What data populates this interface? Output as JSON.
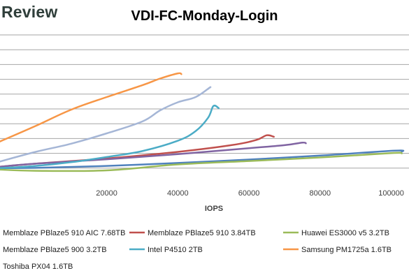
{
  "header": {
    "logo_text": "Review"
  },
  "chart_data": {
    "type": "line",
    "title": "VDI-FC-Monday-Login",
    "xlabel": "IOPS",
    "ylabel": "",
    "xlim": [
      -10000,
      105000
    ],
    "ylim": [
      0,
      10
    ],
    "x_ticks": [
      20000,
      40000,
      60000,
      80000,
      100000
    ],
    "x_tick_labels": [
      "20000",
      "40000",
      "60000",
      "80000",
      "100000"
    ],
    "grid": true,
    "legend_position": "bottom",
    "series": [
      {
        "name": "Memblaze PBlaze5 910 AIC 7.68TB",
        "color": "#4f81bd",
        "points": [
          [
            -10000,
            1.0
          ],
          [
            0,
            1.02
          ],
          [
            20000,
            1.15
          ],
          [
            40000,
            1.35
          ],
          [
            60000,
            1.58
          ],
          [
            80000,
            1.85
          ],
          [
            101000,
            2.18
          ],
          [
            103000,
            2.12
          ]
        ]
      },
      {
        "name": "Memblaze PBlaze5 910 3.84TB",
        "color": "#c0504d",
        "points": [
          [
            -10000,
            1.1
          ],
          [
            0,
            1.3
          ],
          [
            20000,
            1.65
          ],
          [
            40000,
            2.1
          ],
          [
            55000,
            2.55
          ],
          [
            62000,
            2.9
          ],
          [
            65000,
            3.22
          ],
          [
            67000,
            3.12
          ]
        ]
      },
      {
        "name": "Huawei ES3000 v5 3.2TB",
        "color": "#9bbb59",
        "points": [
          [
            -10000,
            0.9
          ],
          [
            0,
            0.82
          ],
          [
            20000,
            0.85
          ],
          [
            40000,
            1.25
          ],
          [
            60000,
            1.48
          ],
          [
            80000,
            1.72
          ],
          [
            100000,
            2.02
          ],
          [
            103000,
            2.0
          ]
        ]
      },
      {
        "name": "Memblaze PBlaze5 900 3.2TB",
        "color": "#8064a2",
        "points": [
          [
            -10000,
            1.1
          ],
          [
            0,
            1.3
          ],
          [
            20000,
            1.6
          ],
          [
            40000,
            1.95
          ],
          [
            60000,
            2.35
          ],
          [
            70000,
            2.55
          ],
          [
            75000,
            2.72
          ],
          [
            76000,
            2.68
          ]
        ]
      },
      {
        "name": "Intel P4510 2TB",
        "color": "#4bacc6",
        "points": [
          [
            -10000,
            1.0
          ],
          [
            0,
            1.15
          ],
          [
            10000,
            1.4
          ],
          [
            20000,
            1.75
          ],
          [
            30000,
            2.15
          ],
          [
            40000,
            2.85
          ],
          [
            45000,
            3.5
          ],
          [
            48500,
            4.4
          ],
          [
            50000,
            5.2
          ],
          [
            51500,
            5.05
          ]
        ]
      },
      {
        "name": "Samsung PM1725a 1.6TB",
        "color": "#f79646",
        "points": [
          [
            -10000,
            2.8
          ],
          [
            0,
            3.85
          ],
          [
            10000,
            4.95
          ],
          [
            20000,
            5.8
          ],
          [
            30000,
            6.6
          ],
          [
            35000,
            7.05
          ],
          [
            40000,
            7.4
          ],
          [
            41000,
            7.35
          ]
        ]
      },
      {
        "name": "Toshiba PX04 1.6TB",
        "color": "#a5b6d6",
        "points": [
          [
            -10000,
            1.45
          ],
          [
            0,
            2.1
          ],
          [
            10000,
            2.65
          ],
          [
            20000,
            3.35
          ],
          [
            30000,
            4.15
          ],
          [
            35000,
            4.9
          ],
          [
            40000,
            5.45
          ],
          [
            45000,
            5.8
          ],
          [
            49000,
            6.45
          ],
          [
            48500,
            6.35
          ]
        ]
      }
    ]
  }
}
